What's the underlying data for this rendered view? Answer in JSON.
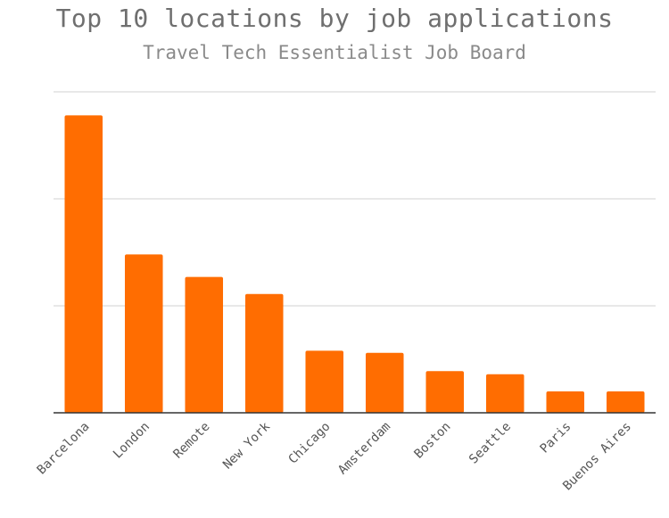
{
  "chart_data": {
    "type": "bar",
    "title": "Top 10 locations by job applications",
    "subtitle": "Travel Tech Essentialist Job Board",
    "xlabel": "",
    "ylabel": "",
    "categories": [
      "Barcelona",
      "London",
      "Remote",
      "New York",
      "Chicago",
      "Amsterdam",
      "Boston",
      "Seattle",
      "Paris",
      "Buenos Aires"
    ],
    "values": [
      278,
      148,
      127,
      111,
      58,
      56,
      39,
      36,
      20,
      20
    ],
    "ylim": [
      0,
      300
    ],
    "grid": true,
    "y_tick_labels_shown": false,
    "legend": "none",
    "bar_color": "#ff6d01",
    "grid_color": "#d9d9d9",
    "axis_color": "#333333",
    "text_color": "#555555"
  }
}
